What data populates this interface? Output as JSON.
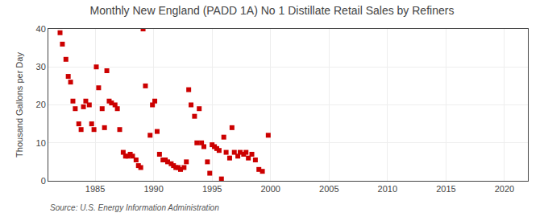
{
  "chart_data": {
    "type": "scatter",
    "title": "Monthly New England (PADD 1A) No 1 Distillate Retail Sales by Refiners",
    "ylabel": "Thousand Gallons per Day",
    "annotations": [
      "Source: U.S. Energy Information Administration"
    ],
    "x": [
      1982.0,
      1982.2,
      1982.5,
      1982.7,
      1982.9,
      1983.1,
      1983.3,
      1983.6,
      1983.8,
      1984.0,
      1984.2,
      1984.5,
      1984.7,
      1984.9,
      1985.1,
      1985.3,
      1985.6,
      1985.8,
      1986.0,
      1986.2,
      1986.4,
      1986.7,
      1986.9,
      1987.1,
      1987.4,
      1987.6,
      1987.8,
      1988.0,
      1988.2,
      1988.5,
      1988.7,
      1988.9,
      1989.1,
      1989.3,
      1989.7,
      1989.9,
      1990.1,
      1990.3,
      1990.5,
      1990.8,
      1991.0,
      1991.2,
      1991.5,
      1991.7,
      1991.9,
      1992.1,
      1992.3,
      1992.6,
      1992.8,
      1993.0,
      1993.2,
      1993.5,
      1993.7,
      1993.9,
      1994.1,
      1994.3,
      1994.6,
      1994.8,
      1995.0,
      1995.2,
      1995.4,
      1995.6,
      1995.8,
      1996.0,
      1996.2,
      1996.5,
      1996.7,
      1996.9,
      1997.2,
      1997.4,
      1997.7,
      1997.9,
      1998.1,
      1998.4,
      1998.7,
      1999.0,
      1999.3,
      1999.8
    ],
    "values": [
      39.0,
      36.0,
      32.0,
      27.5,
      26.0,
      21.0,
      19.0,
      15.0,
      13.5,
      19.5,
      21.0,
      20.0,
      15.0,
      13.5,
      30.0,
      24.5,
      19.0,
      14.0,
      29.0,
      21.0,
      20.5,
      20.0,
      19.0,
      13.5,
      7.5,
      6.5,
      6.5,
      7.0,
      6.5,
      5.5,
      4.0,
      3.5,
      40.0,
      25.0,
      12.0,
      20.0,
      21.0,
      13.0,
      7.0,
      5.5,
      5.5,
      5.0,
      4.5,
      4.0,
      3.5,
      3.5,
      3.0,
      3.5,
      5.0,
      24.0,
      20.0,
      17.0,
      10.0,
      19.0,
      10.0,
      9.0,
      5.0,
      2.0,
      9.5,
      9.0,
      8.5,
      8.0,
      0.5,
      11.5,
      7.5,
      6.0,
      14.0,
      7.5,
      6.5,
      7.5,
      7.0,
      7.5,
      6.0,
      7.0,
      5.5,
      3.0,
      2.5,
      12.0
    ],
    "color": "#cc0000",
    "marker": "square",
    "xlim": [
      1981,
      2022
    ],
    "ylim": [
      0,
      40
    ],
    "xticks": [
      1985,
      1990,
      1995,
      2000,
      2005,
      2010,
      2015,
      2020
    ],
    "yticks": [
      0,
      10,
      20,
      30,
      40
    ],
    "grid": true
  }
}
